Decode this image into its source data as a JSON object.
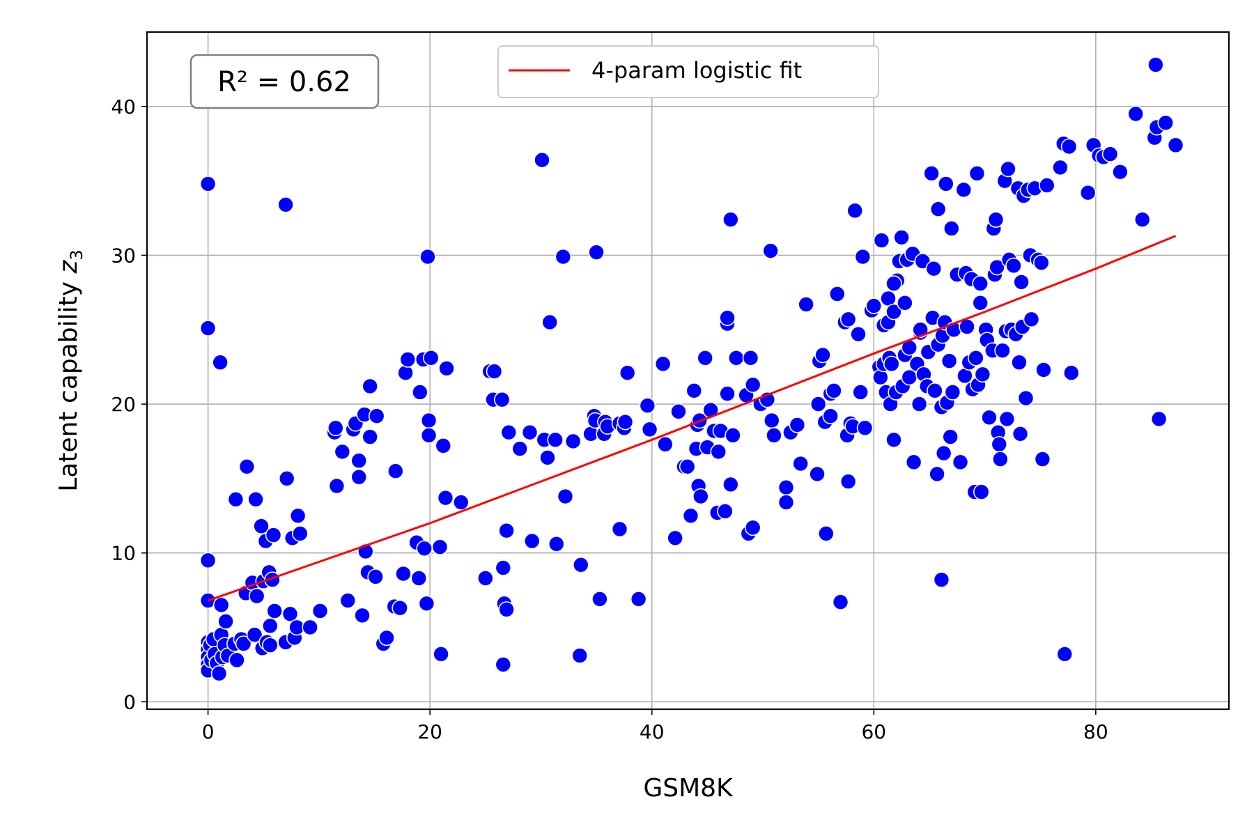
{
  "chart_data": {
    "type": "scatter",
    "xlabel": "GSM8K",
    "ylabel_main": "Latent capability ",
    "ylabel_var": "z",
    "ylabel_sub": "3",
    "xlim": [
      -5.5,
      92
    ],
    "ylim": [
      -0.5,
      45
    ],
    "xticks": [
      0,
      20,
      40,
      60,
      80
    ],
    "yticks": [
      0,
      10,
      20,
      30,
      40
    ],
    "grid": true,
    "legend_position": "top-center",
    "annotation": "R² = 0.62",
    "colors": {
      "points": "#0000ff",
      "fit": "#ff0000",
      "grid": "#b0b0b0",
      "frame": "#000000"
    },
    "fit_line": {
      "name": "4-param logistic fit",
      "x": [
        0,
        10,
        20,
        30,
        40,
        50,
        60,
        70,
        80,
        87.2
      ],
      "y": [
        6.8,
        9.4,
        12.0,
        14.8,
        17.6,
        20.5,
        23.4,
        26.2,
        29.1,
        31.3
      ]
    },
    "points": [
      [
        0,
        34.8
      ],
      [
        0,
        25.1
      ],
      [
        0,
        9.5
      ],
      [
        0,
        6.8
      ],
      [
        0,
        4.0
      ],
      [
        0,
        3.5
      ],
      [
        0,
        3.0
      ],
      [
        0,
        2.5
      ],
      [
        0,
        2.1
      ],
      [
        0.2,
        3.8
      ],
      [
        0.3,
        2.8
      ],
      [
        0.5,
        4.2
      ],
      [
        0.6,
        3.2
      ],
      [
        0.8,
        2.6
      ],
      [
        1,
        1.9
      ],
      [
        1.2,
        4.5
      ],
      [
        1.3,
        3.0
      ],
      [
        1.5,
        3.8
      ],
      [
        1.8,
        3.1
      ],
      [
        1.1,
        22.8
      ],
      [
        1.2,
        6.5
      ],
      [
        1.6,
        5.4
      ],
      [
        2.5,
        13.6
      ],
      [
        2.4,
        3.9
      ],
      [
        2.6,
        2.8
      ],
      [
        3,
        4.2
      ],
      [
        3.2,
        3.9
      ],
      [
        3.5,
        15.8
      ],
      [
        3.4,
        7.3
      ],
      [
        4,
        8.0
      ],
      [
        4.2,
        4.5
      ],
      [
        4.3,
        13.6
      ],
      [
        4.4,
        7.1
      ],
      [
        4.8,
        11.8
      ],
      [
        5,
        8.1
      ],
      [
        5.2,
        10.8
      ],
      [
        4.9,
        3.6
      ],
      [
        5.3,
        4.0
      ],
      [
        5.5,
        8.7
      ],
      [
        5.6,
        5.1
      ],
      [
        5.8,
        8.2
      ],
      [
        5.9,
        11.2
      ],
      [
        6,
        6.1
      ],
      [
        5.6,
        3.8
      ],
      [
        7,
        4.0
      ],
      [
        7.1,
        15.0
      ],
      [
        7,
        33.4
      ],
      [
        7.4,
        5.9
      ],
      [
        7.6,
        11.0
      ],
      [
        7.8,
        4.3
      ],
      [
        8.1,
        12.5
      ],
      [
        8.3,
        11.3
      ],
      [
        8,
        5.0
      ],
      [
        9.2,
        5.0
      ],
      [
        10.1,
        6.1
      ],
      [
        11.4,
        18.1
      ],
      [
        11.5,
        18.4
      ],
      [
        11.6,
        14.5
      ],
      [
        12.1,
        16.8
      ],
      [
        12.6,
        6.8
      ],
      [
        13.1,
        18.3
      ],
      [
        13.3,
        18.7
      ],
      [
        13.6,
        15.1
      ],
      [
        13.6,
        16.2
      ],
      [
        13.9,
        5.8
      ],
      [
        14.1,
        19.3
      ],
      [
        14.2,
        10.1
      ],
      [
        14.4,
        8.7
      ],
      [
        14.6,
        21.2
      ],
      [
        14.6,
        17.8
      ],
      [
        15.2,
        19.2
      ],
      [
        15.1,
        8.4
      ],
      [
        15.8,
        3.9
      ],
      [
        16.1,
        4.3
      ],
      [
        16.8,
        6.4
      ],
      [
        16.9,
        15.5
      ],
      [
        17.3,
        6.3
      ],
      [
        17.6,
        8.6
      ],
      [
        17.8,
        22.1
      ],
      [
        18,
        23.0
      ],
      [
        18.8,
        10.7
      ],
      [
        19,
        8.3
      ],
      [
        19.1,
        20.8
      ],
      [
        19.4,
        23.0
      ],
      [
        19.5,
        10.3
      ],
      [
        19.7,
        6.6
      ],
      [
        19.8,
        29.9
      ],
      [
        19.9,
        18.9
      ],
      [
        19.9,
        17.9
      ],
      [
        20.1,
        23.1
      ],
      [
        20.9,
        10.4
      ],
      [
        21,
        3.2
      ],
      [
        21.2,
        17.2
      ],
      [
        21.5,
        22.4
      ],
      [
        21.4,
        13.7
      ],
      [
        22.8,
        13.4
      ],
      [
        25,
        8.3
      ],
      [
        25.4,
        22.2
      ],
      [
        25.8,
        22.2
      ],
      [
        25.7,
        20.3
      ],
      [
        26.5,
        20.3
      ],
      [
        26.6,
        2.5
      ],
      [
        26.6,
        9.0
      ],
      [
        26.7,
        6.6
      ],
      [
        26.9,
        11.5
      ],
      [
        26.9,
        6.2
      ],
      [
        27.1,
        18.1
      ],
      [
        28.1,
        17.0
      ],
      [
        29,
        18.1
      ],
      [
        29.2,
        10.8
      ],
      [
        30.1,
        36.4
      ],
      [
        30.3,
        17.6
      ],
      [
        30.6,
        16.4
      ],
      [
        30.8,
        25.5
      ],
      [
        31.3,
        17.6
      ],
      [
        31.4,
        10.6
      ],
      [
        32,
        29.9
      ],
      [
        32.2,
        13.8
      ],
      [
        32.9,
        17.5
      ],
      [
        33.5,
        3.1
      ],
      [
        33.6,
        9.2
      ],
      [
        34.5,
        18.0
      ],
      [
        34.8,
        19.2
      ],
      [
        34.9,
        18.9
      ],
      [
        35,
        30.2
      ],
      [
        35.3,
        6.9
      ],
      [
        35.7,
        18.0
      ],
      [
        35.8,
        18.8
      ],
      [
        36,
        18.5
      ],
      [
        37.1,
        11.6
      ],
      [
        37.1,
        18.7
      ],
      [
        37.5,
        18.4
      ],
      [
        37.6,
        18.8
      ],
      [
        37.8,
        22.1
      ],
      [
        38.8,
        6.9
      ],
      [
        39.6,
        19.9
      ],
      [
        39.8,
        18.3
      ],
      [
        41,
        22.7
      ],
      [
        41.2,
        17.3
      ],
      [
        42.1,
        11.0
      ],
      [
        42.4,
        19.5
      ],
      [
        42.9,
        15.8
      ],
      [
        43.2,
        15.8
      ],
      [
        43.5,
        12.5
      ],
      [
        43.8,
        20.9
      ],
      [
        44,
        17.0
      ],
      [
        44.1,
        18.6
      ],
      [
        44.2,
        14.5
      ],
      [
        44.3,
        18.9
      ],
      [
        44.4,
        13.8
      ],
      [
        44.8,
        23.1
      ],
      [
        45,
        17.1
      ],
      [
        45.3,
        19.6
      ],
      [
        45.6,
        18.2
      ],
      [
        45.9,
        12.7
      ],
      [
        46,
        16.8
      ],
      [
        46.2,
        18.2
      ],
      [
        46.6,
        12.8
      ],
      [
        46.8,
        25.4
      ],
      [
        46.8,
        25.8
      ],
      [
        46.8,
        20.7
      ],
      [
        47.1,
        32.4
      ],
      [
        47.1,
        14.6
      ],
      [
        47.3,
        17.9
      ],
      [
        47.6,
        23.1
      ],
      [
        48.5,
        20.6
      ],
      [
        48.7,
        11.3
      ],
      [
        48.9,
        23.1
      ],
      [
        49.1,
        11.7
      ],
      [
        49.1,
        21.3
      ],
      [
        49.8,
        20.0
      ],
      [
        50.4,
        20.3
      ],
      [
        50.7,
        30.3
      ],
      [
        50.8,
        18.9
      ],
      [
        51,
        17.9
      ],
      [
        52.1,
        14.4
      ],
      [
        52.1,
        13.4
      ],
      [
        52.5,
        18.1
      ],
      [
        53.1,
        18.6
      ],
      [
        53.4,
        16.0
      ],
      [
        53.9,
        26.7
      ],
      [
        54.9,
        15.3
      ],
      [
        55,
        20.0
      ],
      [
        55.1,
        22.9
      ],
      [
        55.4,
        23.3
      ],
      [
        55.6,
        18.8
      ],
      [
        55.7,
        11.3
      ],
      [
        56.1,
        19.2
      ],
      [
        56.1,
        20.7
      ],
      [
        56.4,
        20.9
      ],
      [
        56.7,
        27.4
      ],
      [
        57,
        6.7
      ],
      [
        57.4,
        25.5
      ],
      [
        57.7,
        25.7
      ],
      [
        57.6,
        17.9
      ],
      [
        57.7,
        14.8
      ],
      [
        57.9,
        18.7
      ],
      [
        58.1,
        18.5
      ],
      [
        58.3,
        33.0
      ],
      [
        58.6,
        24.7
      ],
      [
        58.8,
        20.8
      ],
      [
        59,
        29.9
      ],
      [
        59.2,
        18.4
      ],
      [
        59.8,
        26.3
      ],
      [
        60,
        26.6
      ],
      [
        60.5,
        22.5
      ],
      [
        60.6,
        21.8
      ],
      [
        60.7,
        31.0
      ],
      [
        60.9,
        22.7
      ],
      [
        60.9,
        25.3
      ],
      [
        61.1,
        20.8
      ],
      [
        61.3,
        25.5
      ],
      [
        61.3,
        27.1
      ],
      [
        61.4,
        23.1
      ],
      [
        61.5,
        20.0
      ],
      [
        61.6,
        22.7
      ],
      [
        61.8,
        17.6
      ],
      [
        61.8,
        26.2
      ],
      [
        62.1,
        28.3
      ],
      [
        61.8,
        28.1
      ],
      [
        62,
        20.8
      ],
      [
        62.3,
        29.6
      ],
      [
        62.5,
        31.2
      ],
      [
        62.6,
        21.2
      ],
      [
        62.8,
        23.3
      ],
      [
        62.8,
        26.8
      ],
      [
        63,
        29.7
      ],
      [
        63.2,
        23.8
      ],
      [
        63.2,
        21.8
      ],
      [
        63.5,
        30.1
      ],
      [
        63.6,
        16.1
      ],
      [
        63.9,
        22.7
      ],
      [
        64.1,
        20.0
      ],
      [
        64.2,
        24.8
      ],
      [
        64.2,
        25.0
      ],
      [
        64.4,
        29.6
      ],
      [
        64.5,
        22.0
      ],
      [
        64.8,
        21.2
      ],
      [
        64.9,
        23.5
      ],
      [
        65.2,
        35.5
      ],
      [
        65.3,
        25.8
      ],
      [
        65.4,
        29.1
      ],
      [
        65.5,
        20.9
      ],
      [
        65.7,
        15.3
      ],
      [
        65.8,
        33.1
      ],
      [
        65.8,
        24.0
      ],
      [
        66.1,
        8.2
      ],
      [
        66.1,
        19.8
      ],
      [
        66.2,
        24.6
      ],
      [
        66.3,
        16.7
      ],
      [
        66.5,
        34.8
      ],
      [
        66.4,
        25.5
      ],
      [
        66.6,
        20.1
      ],
      [
        66.8,
        22.9
      ],
      [
        66.9,
        17.8
      ],
      [
        67,
        31.8
      ],
      [
        67.1,
        20.8
      ],
      [
        67.2,
        25.0
      ],
      [
        67.5,
        28.7
      ],
      [
        67.8,
        16.1
      ],
      [
        68.1,
        34.4
      ],
      [
        68.2,
        21.9
      ],
      [
        68.3,
        28.8
      ],
      [
        68.4,
        25.2
      ],
      [
        68.6,
        22.8
      ],
      [
        68.8,
        28.4
      ],
      [
        68.9,
        21.0
      ],
      [
        69.1,
        14.1
      ],
      [
        69.2,
        23.1
      ],
      [
        69.3,
        35.5
      ],
      [
        69.4,
        21.3
      ],
      [
        69.6,
        28.1
      ],
      [
        69.6,
        26.8
      ],
      [
        69.7,
        14.1
      ],
      [
        69.8,
        22.0
      ],
      [
        70.1,
        25.0
      ],
      [
        70.2,
        24.3
      ],
      [
        70.4,
        19.1
      ],
      [
        70.7,
        23.6
      ],
      [
        70.8,
        31.8
      ],
      [
        70.9,
        28.7
      ],
      [
        71,
        32.4
      ],
      [
        71.1,
        29.2
      ],
      [
        71.2,
        18.1
      ],
      [
        71.3,
        17.3
      ],
      [
        71.4,
        16.3
      ],
      [
        71.6,
        23.6
      ],
      [
        71.8,
        35.0
      ],
      [
        71.9,
        24.9
      ],
      [
        72,
        19.0
      ],
      [
        72.1,
        35.8
      ],
      [
        72.2,
        29.7
      ],
      [
        72.4,
        25.0
      ],
      [
        72.6,
        29.3
      ],
      [
        72.8,
        24.7
      ],
      [
        73,
        34.5
      ],
      [
        73.1,
        22.8
      ],
      [
        73.2,
        18.0
      ],
      [
        73.3,
        28.2
      ],
      [
        73.4,
        25.2
      ],
      [
        73.5,
        34.0
      ],
      [
        73.7,
        20.4
      ],
      [
        73.9,
        34.4
      ],
      [
        74.1,
        30.0
      ],
      [
        74.2,
        25.7
      ],
      [
        74.5,
        34.5
      ],
      [
        74.8,
        29.7
      ],
      [
        75.1,
        29.5
      ],
      [
        75.2,
        16.3
      ],
      [
        75.3,
        22.3
      ],
      [
        75.6,
        34.7
      ],
      [
        76.8,
        35.9
      ],
      [
        77.1,
        37.5
      ],
      [
        77.2,
        3.2
      ],
      [
        77.6,
        37.3
      ],
      [
        77.8,
        22.1
      ],
      [
        79.3,
        34.2
      ],
      [
        79.8,
        37.4
      ],
      [
        80.3,
        36.7
      ],
      [
        80.7,
        36.6
      ],
      [
        81.3,
        36.8
      ],
      [
        82.2,
        35.6
      ],
      [
        83.6,
        39.5
      ],
      [
        84.2,
        32.4
      ],
      [
        85.3,
        37.9
      ],
      [
        85.4,
        42.8
      ],
      [
        85.5,
        38.6
      ],
      [
        85.7,
        19.0
      ],
      [
        86.3,
        38.9
      ],
      [
        87.2,
        37.4
      ]
    ]
  }
}
